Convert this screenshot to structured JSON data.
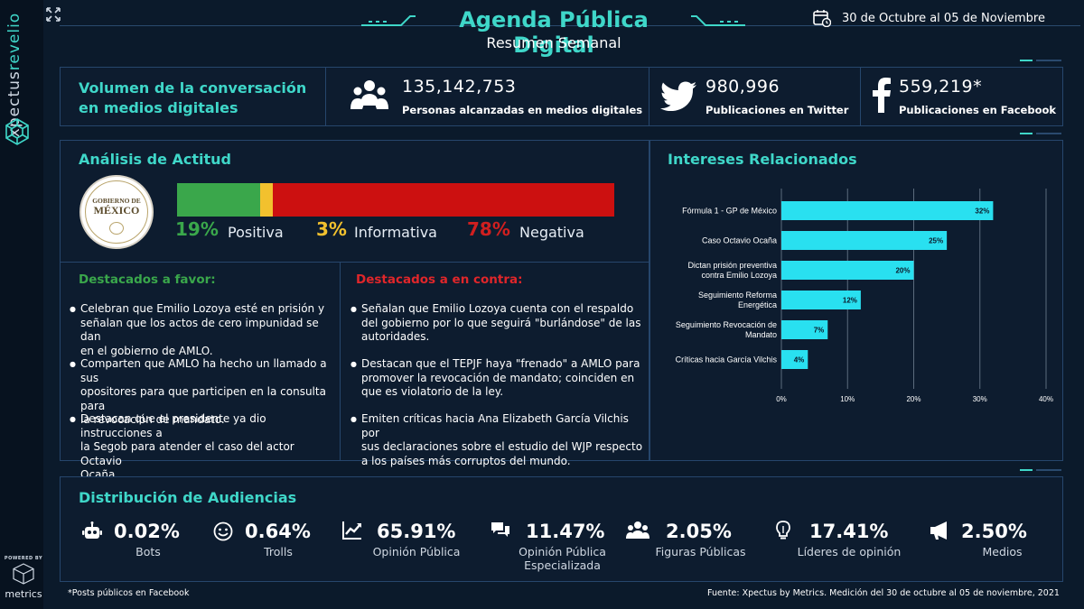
{
  "brand": {
    "name_a": "xpectus",
    "name_b": "revelio",
    "powered_label": "POWERED BY",
    "metrics_label": "metrics"
  },
  "header": {
    "title": "Agenda Pública Digital",
    "subtitle": "Resumen Semanal",
    "date_range": "30 de Octubre al 05 de Noviembre"
  },
  "volume": {
    "title_line1": "Volumen de la conversación",
    "title_line2": "en medios digitales",
    "stats": [
      {
        "icon": "people-icon",
        "value": "135,142,753",
        "label": "Personas alcanzadas en medios digitales"
      },
      {
        "icon": "twitter-icon",
        "value": "980,996",
        "label": "Publicaciones en Twitter"
      },
      {
        "icon": "facebook-icon",
        "value": "559,219*",
        "label": "Publicaciones en Facebook"
      }
    ]
  },
  "attitude": {
    "title": "Análisis de Actitud",
    "seal_line1": "GOBIERNO DE",
    "seal_line2": "MÉXICO",
    "segments": [
      {
        "pct_value": 19,
        "pct_label": "19%",
        "name": "Positiva",
        "color": "#3aa74b",
        "text_color": "#3aa74b"
      },
      {
        "pct_value": 3,
        "pct_label": "3%",
        "name": "Informativa",
        "color": "#f2c12e",
        "text_color": "#f2c12e"
      },
      {
        "pct_value": 78,
        "pct_label": "78%",
        "name": "Negativa",
        "color": "#cc1010",
        "text_color": "#d01f1f"
      }
    ],
    "favor": {
      "title": "Destacados a favor:",
      "items": [
        [
          "Celebran que Emilio Lozoya esté en prisión y",
          "señalan que los actos de cero impunidad se dan",
          "en el gobierno de AMLO."
        ],
        [
          "Comparten que AMLO ha hecho un llamado a sus",
          "opositores para que participen en la consulta para",
          "la revocación de mandato."
        ],
        [
          "Destacan que el presidente ya dio instrucciones a",
          "la Segob para atender el caso del actor Octavio",
          "Ocaña."
        ]
      ]
    },
    "contra": {
      "title": "Destacados a en contra:",
      "items": [
        [
          "Señalan que Emilio Lozoya cuenta con el respaldo",
          "del gobierno por lo que seguirá \"burlándose\" de las",
          "autoridades."
        ],
        [
          "Destacan que el TEPJF haya \"frenado\" a AMLO para",
          "promover la revocación de mandato; coinciden en",
          "que es violatorio de la ley."
        ],
        [
          "Emiten críticas hacia Ana Elizabeth García Vilchis por",
          "sus declaraciones sobre el estudio del WJP respecto",
          "a los países más corruptos del mundo."
        ]
      ]
    }
  },
  "interests": {
    "title": "Intereses Relacionados"
  },
  "chart_data": {
    "type": "bar",
    "orientation": "horizontal",
    "categories": [
      [
        "Fórmula 1 - GP de México"
      ],
      [
        "Caso Octavio Ocaña"
      ],
      [
        "Dictan prisión preventiva",
        "contra Emilio Lozoya"
      ],
      [
        "Seguimiento Reforma",
        "Energética"
      ],
      [
        "Seguimiento Revocación de",
        "Mandato"
      ],
      [
        "Críticas hacia García Vilchis"
      ]
    ],
    "values": [
      32,
      25,
      20,
      12,
      7,
      4
    ],
    "data_labels": [
      "32%",
      "25%",
      "20%",
      "12%",
      "7%",
      "4%"
    ],
    "xlim": [
      0,
      40
    ],
    "xticks": [
      "0%",
      "10%",
      "20%",
      "30%",
      "40%"
    ],
    "bar_color": "#29e0f0",
    "grid": true
  },
  "audience": {
    "title": "Distribución de Audiencias",
    "items": [
      {
        "icon": "robot-icon",
        "value": "0.02%",
        "label": [
          "Bots"
        ]
      },
      {
        "icon": "smiley-icon",
        "value": "0.64%",
        "label": [
          "Trolls"
        ]
      },
      {
        "icon": "trend-icon",
        "value": "65.91%",
        "label": [
          "Opinión Pública"
        ]
      },
      {
        "icon": "chat-icon",
        "value": "11.47%",
        "label": [
          "Opinión Pública",
          "Especializada"
        ]
      },
      {
        "icon": "group-icon",
        "value": "2.05%",
        "label": [
          "Figuras Públicas"
        ]
      },
      {
        "icon": "bulb-icon",
        "value": "17.41%",
        "label": [
          "Líderes de opinión"
        ]
      },
      {
        "icon": "megaphone-icon",
        "value": "2.50%",
        "label": [
          "Medios"
        ]
      }
    ]
  },
  "footer": {
    "note": "*Posts públicos en Facebook",
    "source": "Fuente: Xpectus by Metrics. Medición del 30 de octubre al 05 de noviembre, 2021"
  }
}
